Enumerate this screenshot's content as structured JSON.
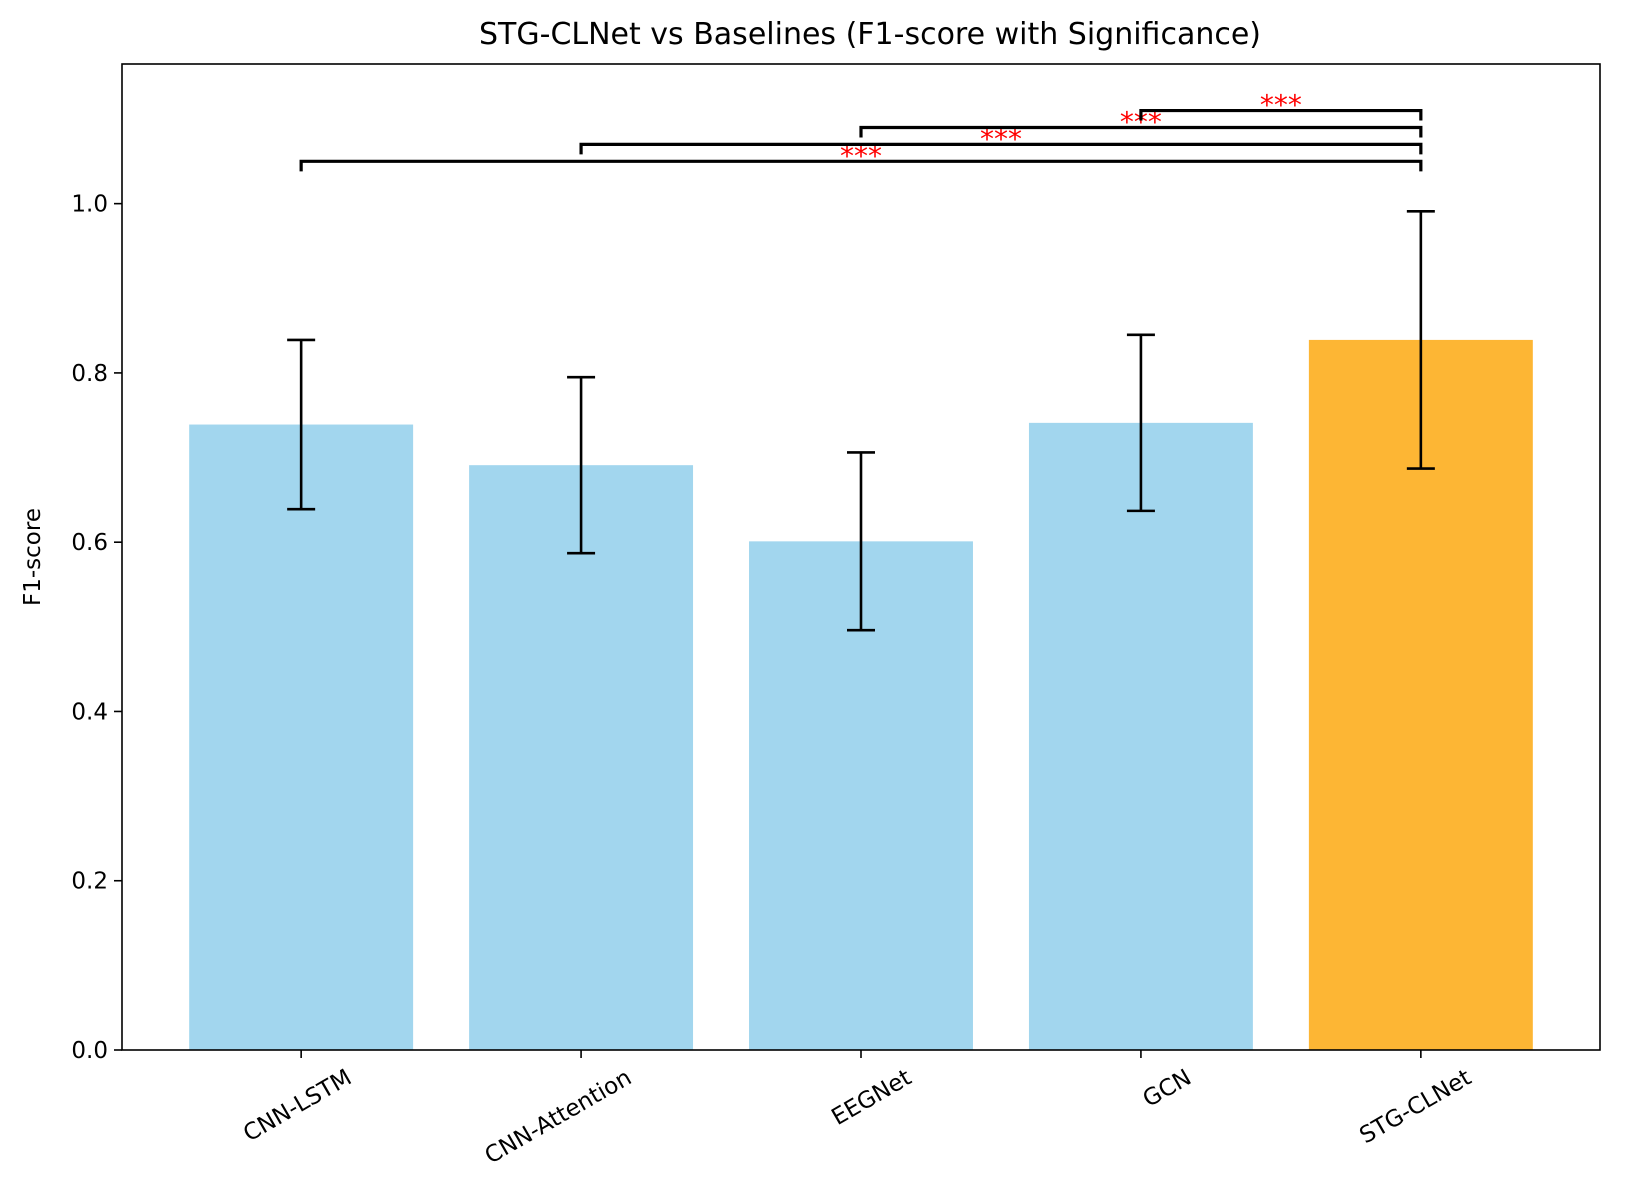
{
  "chart_data": {
    "type": "bar",
    "title": "STG-CLNet vs Baselines (F1-score with Significance)",
    "xlabel": "",
    "ylabel": "F1-score",
    "ylim": [
      0,
      1.165
    ],
    "yticks": [
      0.0,
      0.2,
      0.4,
      0.6,
      0.8,
      1.0
    ],
    "ytick_labels": [
      "0.0",
      "0.2",
      "0.4",
      "0.6",
      "0.8",
      "1.0"
    ],
    "categories": [
      "CNN-LSTM",
      "CNN-Attention",
      "EEGNet",
      "GCN",
      "STG-CLNet"
    ],
    "values": [
      0.739,
      0.691,
      0.601,
      0.741,
      0.839
    ],
    "errors": [
      0.1,
      0.104,
      0.105,
      0.104,
      0.152
    ],
    "colors": [
      "#a2d6ee",
      "#a2d6ee",
      "#a2d6ee",
      "#a2d6ee",
      "#fdb634"
    ],
    "grid": false,
    "significance": [
      {
        "from": 0,
        "to": 4,
        "y": 1.05,
        "label": "***"
      },
      {
        "from": 1,
        "to": 4,
        "y": 1.07,
        "label": "***"
      },
      {
        "from": 2,
        "to": 4,
        "y": 1.09,
        "label": "***"
      },
      {
        "from": 3,
        "to": 4,
        "y": 1.11,
        "label": "***"
      }
    ]
  }
}
